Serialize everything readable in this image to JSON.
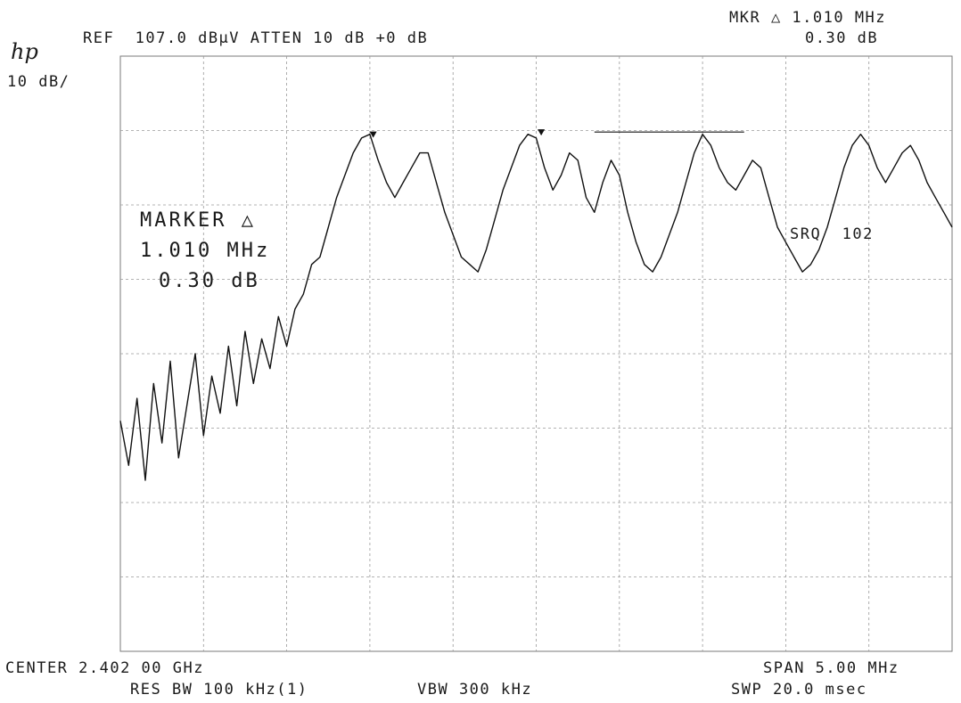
{
  "header": {
    "logo": "hp",
    "ref_line": "REF  107.0 dBµV ATTEN 10 dB +0 dB",
    "scale": "10 dB/",
    "mkr_line1": "MKR △ 1.010 MHz",
    "mkr_line2": "0.30 dB"
  },
  "annotation": {
    "line1": "MARKER △",
    "line2": "1.010 MHz",
    "line3": "0.30 dB",
    "srq": "SRQ  102"
  },
  "footer": {
    "center": "CENTER 2.402 00 GHz",
    "span": "SPAN 5.00 MHz",
    "res_bw": "RES BW 100 kHz(1)",
    "vbw": "VBW 300 kHz",
    "sweep": "SWP 20.0 msec"
  },
  "chart_data": {
    "type": "line",
    "title": "",
    "xlabel": "",
    "ylabel": "",
    "center_ghz": 2.402,
    "span_mhz": 5.0,
    "xlim_mhz": [
      -2.5,
      2.5
    ],
    "ylim_dbuv": [
      27.0,
      107.0
    ],
    "ref_level_dbuv": 107.0,
    "db_per_div": 10,
    "grid": true,
    "series": [
      {
        "name": "",
        "x_mhz": [
          -2.5,
          -2.45,
          -2.4,
          -2.35,
          -2.3,
          -2.25,
          -2.2,
          -2.15,
          -2.1,
          -2.05,
          -2.0,
          -1.95,
          -1.9,
          -1.85,
          -1.8,
          -1.75,
          -1.7,
          -1.65,
          -1.6,
          -1.55,
          -1.5,
          -1.45,
          -1.4,
          -1.35,
          -1.3,
          -1.25,
          -1.2,
          -1.15,
          -1.1,
          -1.05,
          -1.0,
          -0.95,
          -0.9,
          -0.85,
          -0.8,
          -0.75,
          -0.7,
          -0.65,
          -0.6,
          -0.55,
          -0.5,
          -0.45,
          -0.4,
          -0.35,
          -0.3,
          -0.25,
          -0.2,
          -0.15,
          -0.1,
          -0.05,
          0.0,
          0.05,
          0.1,
          0.15,
          0.2,
          0.25,
          0.3,
          0.35,
          0.4,
          0.45,
          0.5,
          0.55,
          0.6,
          0.65,
          0.7,
          0.75,
          0.8,
          0.85,
          0.9,
          0.95,
          1.0,
          1.05,
          1.1,
          1.15,
          1.2,
          1.25,
          1.3,
          1.35,
          1.4,
          1.45,
          1.5,
          1.55,
          1.6,
          1.65,
          1.7,
          1.75,
          1.8,
          1.85,
          1.9,
          1.95,
          2.0,
          2.05,
          2.1,
          2.15,
          2.2,
          2.25,
          2.3,
          2.35,
          2.4,
          2.45,
          2.5
        ],
        "y_dbuv": [
          58,
          52,
          61,
          50,
          63,
          55,
          66,
          53,
          60,
          67,
          56,
          64,
          59,
          68,
          60,
          70,
          63,
          69,
          65,
          72,
          68,
          73,
          75,
          79,
          80,
          84,
          88,
          91,
          94,
          96,
          96.5,
          93,
          90,
          88,
          90,
          92,
          94,
          94,
          90,
          86,
          83,
          80,
          79,
          78,
          81,
          85,
          89,
          92,
          95,
          96.5,
          96,
          92,
          89,
          91,
          94,
          93,
          88,
          86,
          90,
          93,
          91,
          86,
          82,
          79,
          78,
          80,
          83,
          86,
          90,
          94,
          96.5,
          95,
          92,
          90,
          89,
          91,
          93,
          92,
          88,
          84,
          82,
          80,
          78,
          79,
          81,
          84,
          88,
          92,
          95,
          96.5,
          95,
          92,
          90,
          92,
          94,
          95,
          93,
          90,
          88,
          86,
          84
        ]
      }
    ],
    "markers": [
      {
        "name": "marker",
        "x_mhz": -0.98,
        "y_dbuv": 96.5
      },
      {
        "name": "delta",
        "x_mhz": 0.03,
        "y_dbuv": 96.8
      }
    ],
    "reference_line": {
      "x_start_mhz": 0.35,
      "x_end_mhz": 1.25,
      "y_dbuv": 96.8
    }
  }
}
